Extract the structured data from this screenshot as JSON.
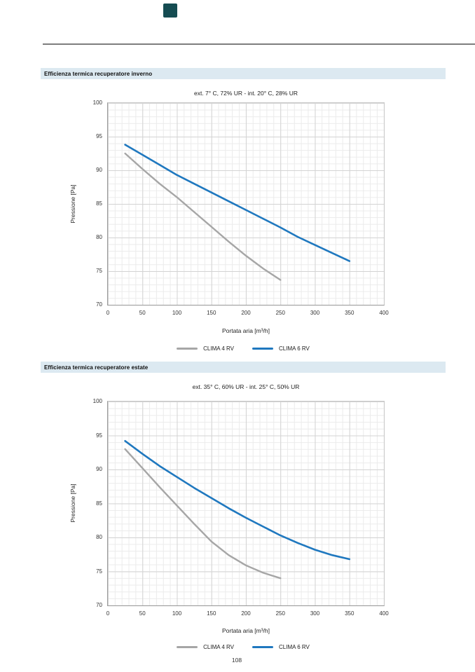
{
  "page": {
    "number": "108"
  },
  "brand": {
    "mark": "teal-square",
    "color": "#154c52"
  },
  "colors": {
    "section_header_bg": "#dce9f1",
    "clima4_gray": "#a6a6a6",
    "clima6_blue": "#1f78bf",
    "top_rule": "#7d7d7d",
    "grid_major": "#d4d4d4",
    "grid_minor": "#ebebeb"
  },
  "sections": [
    {
      "header": "Efficienza termica recuperatore inverno"
    },
    {
      "header": "Efficienza termica recuperatore estate"
    }
  ],
  "chart_data": [
    {
      "type": "line",
      "title": "ext. 7° C, 72% UR - int. 20° C, 28% UR",
      "xlabel": "Portata aria [m³/h]",
      "ylabel": "Pressione [Pa]",
      "xlim": [
        0,
        400
      ],
      "ylim": [
        70,
        100
      ],
      "xtick_step": 50,
      "ytick_step": 5,
      "grid": "minor 10x1, major 50x5",
      "legend_position": "bottom",
      "series": [
        {
          "name": "CLIMA 4 RV",
          "color": "#a6a6a6",
          "points": [
            [
              25,
              92.5
            ],
            [
              50,
              90.2
            ],
            [
              75,
              88.0
            ],
            [
              100,
              86.0
            ],
            [
              125,
              83.8
            ],
            [
              150,
              81.6
            ],
            [
              175,
              79.4
            ],
            [
              200,
              77.3
            ],
            [
              225,
              75.4
            ],
            [
              250,
              73.7
            ]
          ]
        },
        {
          "name": "CLIMA 6 RV",
          "color": "#1f78bf",
          "points": [
            [
              25,
              93.8
            ],
            [
              50,
              92.3
            ],
            [
              75,
              90.8
            ],
            [
              100,
              89.3
            ],
            [
              125,
              88.0
            ],
            [
              150,
              86.7
            ],
            [
              175,
              85.4
            ],
            [
              200,
              84.1
            ],
            [
              225,
              82.8
            ],
            [
              250,
              81.5
            ],
            [
              275,
              80.1
            ],
            [
              300,
              78.9
            ],
            [
              325,
              77.7
            ],
            [
              350,
              76.5
            ]
          ]
        }
      ]
    },
    {
      "type": "line",
      "title": "ext. 35° C, 60% UR - int. 25° C, 50% UR",
      "xlabel": "Portata aria [m³/h]",
      "ylabel": "Pressione [Pa]",
      "xlim": [
        0,
        400
      ],
      "ylim": [
        70,
        100
      ],
      "xtick_step": 50,
      "ytick_step": 5,
      "grid": "minor 10x1, major 50x5",
      "legend_position": "bottom",
      "series": [
        {
          "name": "CLIMA 4 RV",
          "color": "#a6a6a6",
          "points": [
            [
              25,
              93.0
            ],
            [
              50,
              90.2
            ],
            [
              75,
              87.4
            ],
            [
              100,
              84.7
            ],
            [
              125,
              82.0
            ],
            [
              150,
              79.4
            ],
            [
              175,
              77.4
            ],
            [
              200,
              75.9
            ],
            [
              225,
              74.8
            ],
            [
              250,
              74.0
            ]
          ]
        },
        {
          "name": "CLIMA 6 RV",
          "color": "#1f78bf",
          "points": [
            [
              25,
              94.2
            ],
            [
              50,
              92.3
            ],
            [
              75,
              90.5
            ],
            [
              100,
              88.9
            ],
            [
              125,
              87.3
            ],
            [
              150,
              85.8
            ],
            [
              175,
              84.3
            ],
            [
              200,
              82.9
            ],
            [
              225,
              81.6
            ],
            [
              250,
              80.3
            ],
            [
              275,
              79.2
            ],
            [
              300,
              78.2
            ],
            [
              325,
              77.4
            ],
            [
              350,
              76.8
            ]
          ]
        }
      ]
    }
  ]
}
